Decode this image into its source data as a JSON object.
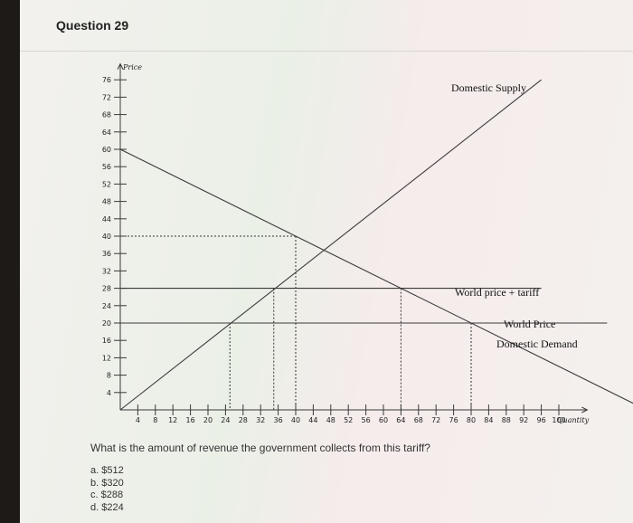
{
  "question": {
    "title": "Question 29",
    "prompt": "What is the amount of revenue the government collects from this tariff?",
    "answers": [
      "a. $512",
      "b. $320",
      "c. $288",
      "d. $224"
    ]
  },
  "chart_data": {
    "type": "line",
    "title": "",
    "ylabel": "Price",
    "xlabel": "Quantity",
    "xlim": [
      0,
      104
    ],
    "ylim": [
      0,
      78
    ],
    "x_ticks": [
      4,
      8,
      12,
      16,
      20,
      24,
      28,
      32,
      36,
      40,
      44,
      48,
      52,
      56,
      60,
      64,
      68,
      72,
      76,
      80,
      84,
      88,
      92,
      96,
      100
    ],
    "y_ticks": [
      4,
      8,
      12,
      16,
      20,
      24,
      28,
      32,
      36,
      40,
      44,
      48,
      52,
      56,
      60,
      64,
      68,
      72,
      76
    ],
    "x_tick_labels": [
      "4",
      "8",
      "12",
      "16",
      "20",
      "24",
      "28",
      "32",
      "36",
      "40",
      "44",
      "48",
      "52",
      "56",
      "60",
      "64",
      "68",
      "72",
      "76",
      "80",
      "84",
      "88",
      "92",
      "96",
      "100"
    ],
    "y_tick_labels": [
      "4",
      "8",
      "12",
      "16",
      "20",
      "24",
      "28",
      "32",
      "36",
      "40",
      "44",
      "48",
      "52",
      "56",
      "60",
      "64",
      "68",
      "72",
      "76"
    ],
    "series": [
      {
        "name": "Domestic Supply",
        "x": [
          0,
          96
        ],
        "y": [
          0,
          76
        ]
      },
      {
        "name": "Domestic Demand",
        "x": [
          0,
          120
        ],
        "y": [
          60,
          0
        ]
      },
      {
        "name": "World price + tariff",
        "x": [
          0,
          96
        ],
        "y": [
          28,
          28
        ]
      },
      {
        "name": "World Price",
        "x": [
          0,
          111
        ],
        "y": [
          20,
          20
        ]
      }
    ],
    "reference_lines": [
      {
        "x": 40,
        "y": 40
      },
      {
        "x": 25,
        "y": 20
      },
      {
        "x": 35,
        "y": 28
      },
      {
        "x": 64,
        "y": 28
      },
      {
        "x": 80,
        "y": 20
      }
    ],
    "line_color": "#3a3a3a"
  }
}
